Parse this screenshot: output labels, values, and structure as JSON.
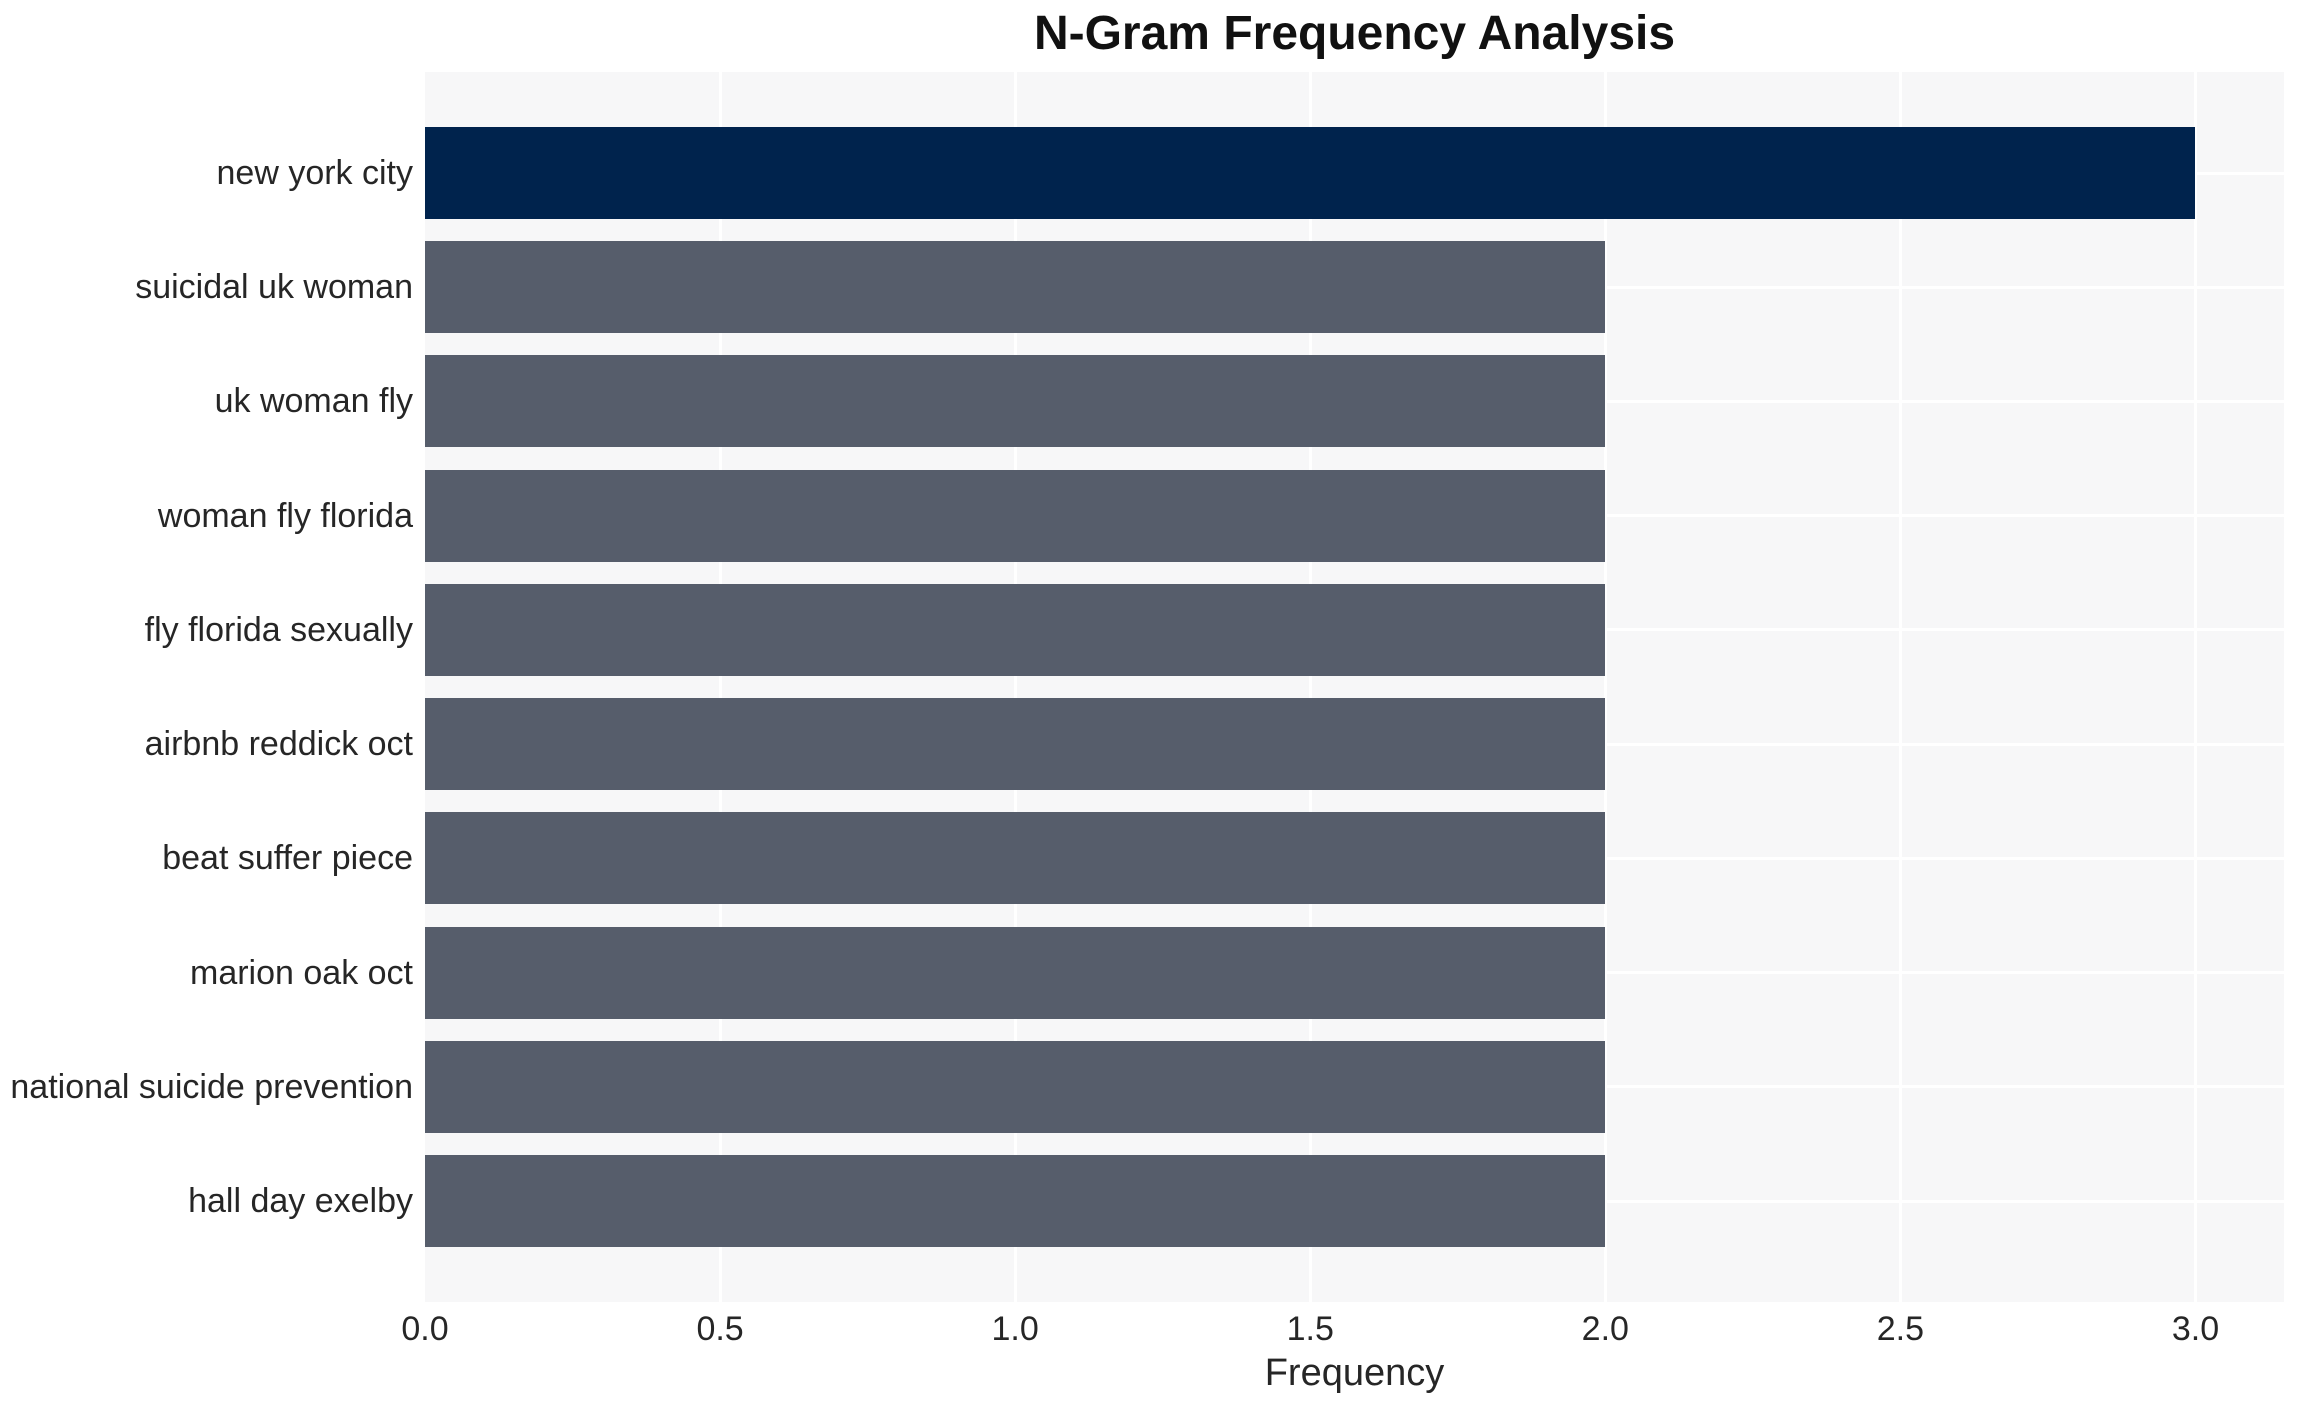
{
  "chart_data": {
    "type": "bar",
    "orientation": "horizontal",
    "title": "N-Gram Frequency Analysis",
    "xlabel": "Frequency",
    "ylabel": "",
    "categories": [
      "new york city",
      "suicidal uk woman",
      "uk woman fly",
      "woman fly florida",
      "fly florida sexually",
      "airbnb reddick oct",
      "beat suffer piece",
      "marion oak oct",
      "national suicide prevention",
      "hall day exelby"
    ],
    "values": [
      3,
      2,
      2,
      2,
      2,
      2,
      2,
      2,
      2,
      2
    ],
    "bar_colors": [
      "#00234d",
      "#565d6b",
      "#565d6b",
      "#565d6b",
      "#565d6b",
      "#565d6b",
      "#565d6b",
      "#565d6b",
      "#565d6b",
      "#565d6b"
    ],
    "xlim": [
      0,
      3.15
    ],
    "xticks": [
      0.0,
      0.5,
      1.0,
      1.5,
      2.0,
      2.5,
      3.0
    ],
    "xtick_labels": [
      "0.0",
      "0.5",
      "1.0",
      "1.5",
      "2.0",
      "2.5",
      "3.0"
    ],
    "grid": true,
    "legend": false,
    "colors": {
      "highlight_bar": "#00234d",
      "default_bar": "#565d6b",
      "plot_background": "#f7f7f8",
      "grid_line": "#ffffff",
      "tick_text": "#262626",
      "title_text": "#111111",
      "page_background": "#ffffff"
    }
  }
}
